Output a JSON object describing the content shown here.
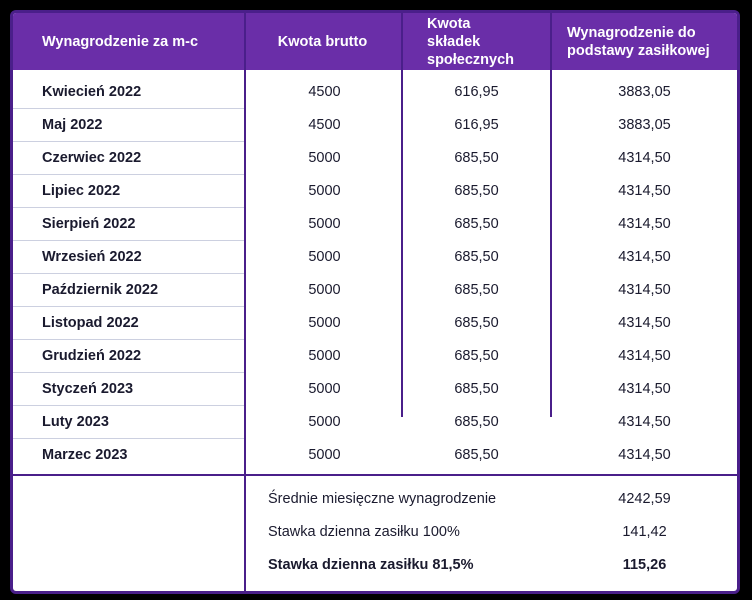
{
  "headers": [
    "Wynagrodzenie za m-c",
    "Kwota brutto",
    "Kwota składek społecznych",
    "Wynagrodzenie do podstawy zasiłkowej"
  ],
  "rows": [
    {
      "month": "Kwiecień 2022",
      "gross": "4500",
      "contrib": "616,95",
      "base": "3883,05"
    },
    {
      "month": "Maj 2022",
      "gross": "4500",
      "contrib": "616,95",
      "base": "3883,05"
    },
    {
      "month": "Czerwiec 2022",
      "gross": "5000",
      "contrib": "685,50",
      "base": "4314,50"
    },
    {
      "month": "Lipiec 2022",
      "gross": "5000",
      "contrib": "685,50",
      "base": "4314,50"
    },
    {
      "month": "Sierpień 2022",
      "gross": "5000",
      "contrib": "685,50",
      "base": "4314,50"
    },
    {
      "month": "Wrzesień 2022",
      "gross": "5000",
      "contrib": "685,50",
      "base": "4314,50"
    },
    {
      "month": "Październik 2022",
      "gross": "5000",
      "contrib": "685,50",
      "base": "4314,50"
    },
    {
      "month": "Listopad 2022",
      "gross": "5000",
      "contrib": "685,50",
      "base": "4314,50"
    },
    {
      "month": "Grudzień 2022",
      "gross": "5000",
      "contrib": "685,50",
      "base": "4314,50"
    },
    {
      "month": "Styczeń 2023",
      "gross": "5000",
      "contrib": "685,50",
      "base": "4314,50"
    },
    {
      "month": "Luty 2023",
      "gross": "5000",
      "contrib": "685,50",
      "base": "4314,50"
    },
    {
      "month": "Marzec 2023",
      "gross": "5000",
      "contrib": "685,50",
      "base": "4314,50"
    }
  ],
  "summary": [
    {
      "label": "Średnie miesięczne wynagrodzenie",
      "value": "4242,59"
    },
    {
      "label": "Stawka dzienna zasiłku 100%",
      "value": "141,42"
    },
    {
      "label": "Stawka dzienna zasiłku 81,5%",
      "value": "115,26"
    }
  ],
  "colors": {
    "header_bg": "#6a2ea8",
    "border": "#4a1f8a",
    "background": "#000000"
  }
}
